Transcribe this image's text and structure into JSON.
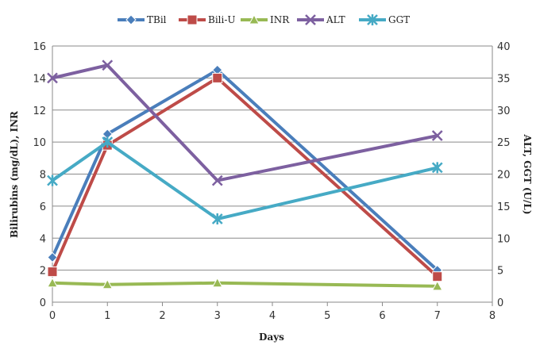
{
  "chart_data": {
    "type": "line",
    "x": [
      0,
      1,
      3,
      7
    ],
    "xlabel": "Days",
    "ylabel": "Bilirubins (mg/dL), INR",
    "y2label": "ALT, GGT (U/L)",
    "xlim": [
      0,
      8
    ],
    "ylim": [
      0,
      16
    ],
    "y2lim": [
      0,
      40
    ],
    "xticks": [
      "0",
      "1",
      "2",
      "3",
      "4",
      "5",
      "6",
      "7",
      "8"
    ],
    "yticks": [
      "0",
      "2",
      "4",
      "6",
      "8",
      "10",
      "12",
      "14",
      "16"
    ],
    "y2ticks": [
      "0",
      "5",
      "10",
      "15",
      "20",
      "25",
      "30",
      "35",
      "40"
    ],
    "grid": true,
    "legend_position": "top",
    "series": [
      {
        "name": "TBil",
        "axis": "left",
        "color": "#4a7ebb",
        "marker": "diamond",
        "values": [
          2.8,
          10.5,
          14.5,
          2.0
        ]
      },
      {
        "name": "Bili-U",
        "axis": "left",
        "color": "#be4b48",
        "marker": "square",
        "values": [
          1.9,
          9.8,
          14.0,
          1.6
        ]
      },
      {
        "name": "INR",
        "axis": "left",
        "color": "#98b954",
        "marker": "triangle",
        "values": [
          1.2,
          1.1,
          1.2,
          1.0
        ]
      },
      {
        "name": "ALT",
        "axis": "right",
        "color": "#7d60a0",
        "marker": "x",
        "values": [
          35,
          37,
          19,
          26
        ]
      },
      {
        "name": "GGT",
        "axis": "right",
        "color": "#46aac5",
        "marker": "star",
        "values": [
          19,
          25,
          13,
          21
        ]
      }
    ]
  }
}
